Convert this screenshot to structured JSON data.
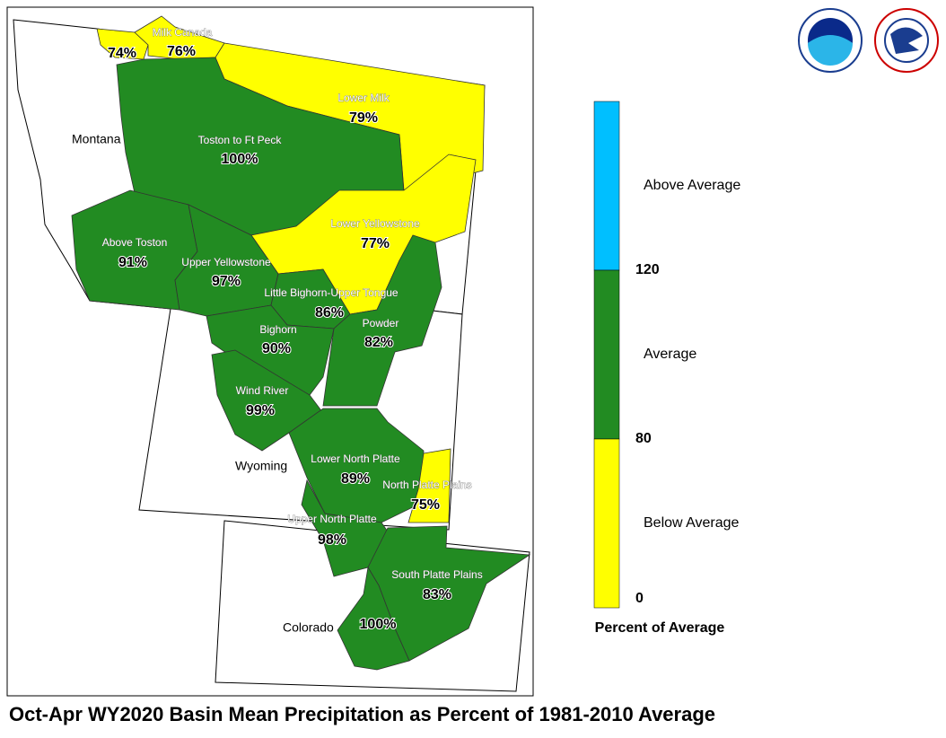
{
  "title": "Oct-Apr WY2020 Basin Mean Precipitation as Percent of 1981-2010 Average",
  "states": [
    "Montana",
    "Wyoming",
    "Colorado"
  ],
  "basins": [
    {
      "label": "74%",
      "color": "#ffff00"
    },
    {
      "name": "Milk Canada",
      "label": "76%",
      "color": "#ffff00"
    },
    {
      "name": "Lower Milk",
      "label": "79%",
      "color": "#ffff00"
    },
    {
      "name": "Toston to Ft Peck",
      "label": "100%",
      "color": "#228b22"
    },
    {
      "name": "Above Toston",
      "label": "91%",
      "color": "#228b22"
    },
    {
      "name": "Lower Yellowstone",
      "label": "77%",
      "color": "#ffff00"
    },
    {
      "name": "Upper Yellowstone",
      "label": "97%",
      "color": "#228b22"
    },
    {
      "name": "Little Bighorn-Upper Tongue",
      "label": "86%",
      "color": "#228b22"
    },
    {
      "name": "Powder",
      "label": "82%",
      "color": "#228b22"
    },
    {
      "name": "Bighorn",
      "label": "90%",
      "color": "#228b22"
    },
    {
      "name": "Wind River",
      "label": "99%",
      "color": "#228b22"
    },
    {
      "name": "Lower North Platte",
      "label": "89%",
      "color": "#228b22"
    },
    {
      "name": "North Platte Plains",
      "label": "75%",
      "color": "#ffff00"
    },
    {
      "name": "Upper North Platte",
      "label": "98%",
      "color": "#228b22"
    },
    {
      "name": "South Platte Plains",
      "label": "83%",
      "color": "#228b22"
    },
    {
      "label": "100%",
      "color": "#228b22"
    }
  ],
  "legend": {
    "title": "Percent of Average",
    "classes": [
      {
        "name": "Above Average",
        "color": "#00bfff"
      },
      {
        "name": "Average",
        "color": "#228b22"
      },
      {
        "name": "Below Average",
        "color": "#ffff00"
      }
    ],
    "breaks": [
      120,
      80,
      0
    ]
  }
}
